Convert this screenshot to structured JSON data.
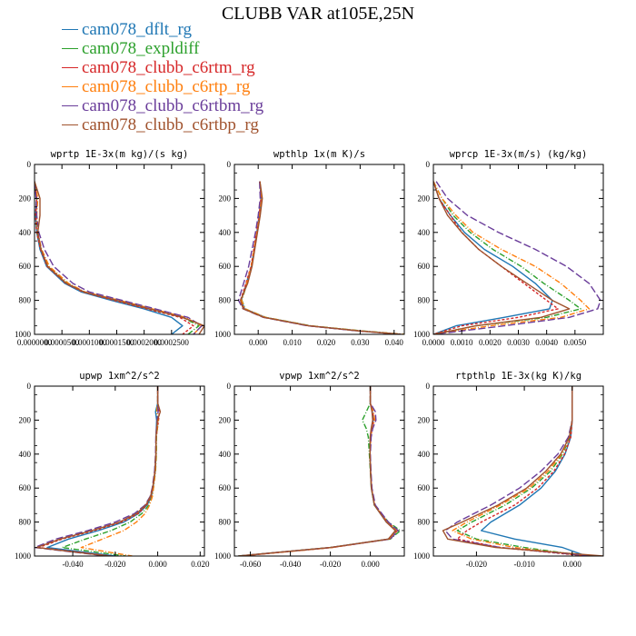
{
  "figure": {
    "title": "CLUBB VAR at105E,25N"
  },
  "legend": [
    {
      "name": "cam078_dflt_rg",
      "color": "#1f77b4"
    },
    {
      "name": "cam078_expldiff",
      "color": "#2ca02c"
    },
    {
      "name": "cam078_clubb_c6rtm_rg",
      "color": "#d62728"
    },
    {
      "name": "cam078_clubb_c6rtp_rg",
      "color": "#ff7f0e"
    },
    {
      "name": "cam078_clubb_c6rtbm_rg",
      "color": "#6a3d9a"
    },
    {
      "name": "cam078_clubb_c6rtbp_rg",
      "color": "#a0522d"
    }
  ],
  "chart_data": [
    {
      "type": "line",
      "title": "wprtp  1E-3x(m kg)/(s kg)",
      "xlim": [
        0,
        0.00031
      ],
      "ylim": [
        1000,
        0
      ],
      "xticks": [
        0,
        5e-05,
        0.0001,
        0.00015,
        0.0002,
        0.00025
      ],
      "xtick_labels": [
        "0.0000000",
        "0.0000500",
        "0.0001000",
        "0.0001500",
        "0.0002000",
        "0.0002500"
      ],
      "yticks": [
        0,
        200,
        400,
        600,
        800,
        1000
      ],
      "y": [
        100,
        200,
        300,
        400,
        500,
        600,
        700,
        750,
        800,
        850,
        900,
        950,
        1000
      ],
      "series": [
        {
          "name": "cam078_dflt_rg",
          "color": "#1f77b4",
          "dash": "",
          "x": [
            0,
            4e-06,
            2e-06,
            4e-06,
            1e-05,
            2.2e-05,
            5.5e-05,
            8.5e-05,
            0.00014,
            0.0002,
            0.00025,
            0.00027,
            0.00025
          ]
        },
        {
          "name": "cam078_expldiff",
          "color": "#2ca02c",
          "dash": "6,2,1,2",
          "x": [
            0,
            5e-06,
            3e-06,
            5e-06,
            1.2e-05,
            2.5e-05,
            6e-05,
            9e-05,
            0.00015,
            0.00021,
            0.00027,
            0.0003,
            0.00028
          ]
        },
        {
          "name": "cam078_clubb_c6rtm_rg",
          "color": "#d62728",
          "dash": "3,2",
          "x": [
            0,
            4e-06,
            2e-06,
            4e-06,
            1.1e-05,
            2.3e-05,
            5.7e-05,
            8.8e-05,
            0.000145,
            0.000205,
            0.000265,
            0.00029,
            0.00027
          ]
        },
        {
          "name": "cam078_clubb_c6rtp_rg",
          "color": "#ff7f0e",
          "dash": "6,2,1,2",
          "x": [
            0,
            6e-06,
            4e-06,
            6e-06,
            1.3e-05,
            2.7e-05,
            6.2e-05,
            9.2e-05,
            0.000155,
            0.000215,
            0.000275,
            0.000305,
            0.00029
          ]
        },
        {
          "name": "cam078_clubb_c6rtbm_rg",
          "color": "#6a3d9a",
          "dash": "8,3",
          "x": [
            0,
            3e-06,
            4e-06,
            8e-06,
            1.8e-05,
            3.5e-05,
            7e-05,
            0.0001,
            0.00016,
            0.00022,
            0.00028,
            0.000305,
            0.00029
          ]
        },
        {
          "name": "cam078_clubb_c6rtbp_rg",
          "color": "#a0522d",
          "dash": "",
          "x": [
            0,
            1e-05,
            1e-05,
            6e-06,
            1.2e-05,
            2.4e-05,
            5.8e-05,
            9e-05,
            0.00015,
            0.00021,
            0.00027,
            0.00031,
            0.0003
          ]
        }
      ]
    },
    {
      "type": "line",
      "title": "wpthlp  1x(m K)/s",
      "xlim": [
        -0.007,
        0.043
      ],
      "ylim": [
        1000,
        0
      ],
      "xticks": [
        0,
        0.01,
        0.02,
        0.03,
        0.04
      ],
      "xtick_labels": [
        "0.000",
        "0.010",
        "0.020",
        "0.030",
        "0.040"
      ],
      "yticks": [
        0,
        200,
        400,
        600,
        800,
        1000
      ],
      "y": [
        100,
        200,
        300,
        400,
        500,
        600,
        700,
        800,
        850,
        900,
        950,
        980,
        1000
      ],
      "series": [
        {
          "name": "cam078_dflt_rg",
          "color": "#1f77b4",
          "dash": "",
          "x": [
            0.0005,
            0.0008,
            0.0003,
            -0.0004,
            -0.0012,
            -0.002,
            -0.0035,
            -0.005,
            -0.004,
            0.002,
            0.015,
            0.03,
            0.042
          ]
        },
        {
          "name": "cam078_expldiff",
          "color": "#2ca02c",
          "dash": "6,2,1,2",
          "x": [
            0.0005,
            0.0009,
            0.0005,
            -0.0003,
            -0.0011,
            -0.0019,
            -0.0033,
            -0.0048,
            -0.0038,
            0.0022,
            0.0155,
            0.031,
            0.043
          ]
        },
        {
          "name": "cam078_clubb_c6rtm_rg",
          "color": "#d62728",
          "dash": "3,2",
          "x": [
            0.0005,
            0.0008,
            0.0003,
            -0.0005,
            -0.0013,
            -0.0021,
            -0.0036,
            -0.0052,
            -0.0042,
            0.0018,
            0.0148,
            0.0298,
            0.042
          ]
        },
        {
          "name": "cam078_clubb_c6rtp_rg",
          "color": "#ff7f0e",
          "dash": "6,2,1,2",
          "x": [
            0.0005,
            0.0009,
            0.0004,
            -0.0004,
            -0.0012,
            -0.002,
            -0.0034,
            -0.0049,
            -0.0039,
            0.0021,
            0.0152,
            0.0305,
            0.043
          ]
        },
        {
          "name": "cam078_clubb_c6rtbm_rg",
          "color": "#6a3d9a",
          "dash": "8,3",
          "x": [
            0.0004,
            0.0006,
            0.0,
            -0.0008,
            -0.0018,
            -0.0028,
            -0.0043,
            -0.0058,
            -0.0045,
            0.0015,
            0.0145,
            0.0295,
            0.042
          ]
        },
        {
          "name": "cam078_clubb_c6rtbp_rg",
          "color": "#a0522d",
          "dash": "",
          "x": [
            0.0005,
            0.0012,
            0.0006,
            -0.0002,
            -0.001,
            -0.0018,
            -0.0031,
            -0.0052,
            -0.0044,
            0.0017,
            0.015,
            0.03,
            0.042
          ]
        }
      ]
    },
    {
      "type": "line",
      "title": "wprcp  1E-3x(m/s) (kg/kg)",
      "xlim": [
        0,
        0.006
      ],
      "ylim": [
        1000,
        0
      ],
      "xticks": [
        0,
        0.001,
        0.002,
        0.003,
        0.004,
        0.005
      ],
      "xtick_labels": [
        "0.0000",
        "0.0010",
        "0.0020",
        "0.0030",
        "0.0040",
        "0.0050"
      ],
      "yticks": [
        0,
        200,
        400,
        600,
        800,
        1000
      ],
      "y": [
        100,
        200,
        300,
        400,
        500,
        600,
        700,
        800,
        850,
        900,
        950,
        1000
      ],
      "series": [
        {
          "name": "cam078_dflt_rg",
          "color": "#1f77b4",
          "dash": "",
          "x": [
            0,
            0.0002,
            0.0006,
            0.0011,
            0.0018,
            0.0028,
            0.0036,
            0.0042,
            0.0041,
            0.0025,
            0.0008,
            0
          ]
        },
        {
          "name": "cam078_expldiff",
          "color": "#2ca02c",
          "dash": "6,2,1,2",
          "x": [
            0,
            0.0003,
            0.0007,
            0.0013,
            0.0021,
            0.0031,
            0.0039,
            0.0048,
            0.0052,
            0.004,
            0.0015,
            0
          ]
        },
        {
          "name": "cam078_clubb_c6rtm_rg",
          "color": "#d62728",
          "dash": "3,2",
          "x": [
            0,
            0.0002,
            0.0006,
            0.001,
            0.0016,
            0.0024,
            0.0032,
            0.004,
            0.0044,
            0.003,
            0.001,
            0
          ]
        },
        {
          "name": "cam078_clubb_c6rtp_rg",
          "color": "#ff7f0e",
          "dash": "6,2,1,2",
          "x": [
            0,
            0.0003,
            0.0008,
            0.0014,
            0.0024,
            0.0036,
            0.0045,
            0.0052,
            0.0055,
            0.0045,
            0.002,
            0
          ]
        },
        {
          "name": "cam078_clubb_c6rtbm_rg",
          "color": "#6a3d9a",
          "dash": "8,3",
          "x": [
            0.0001,
            0.0005,
            0.0012,
            0.0023,
            0.0036,
            0.0047,
            0.0055,
            0.0059,
            0.0058,
            0.0048,
            0.0025,
            0
          ]
        },
        {
          "name": "cam078_clubb_c6rtbp_rg",
          "color": "#a0522d",
          "dash": "",
          "x": [
            0,
            0.0002,
            0.0005,
            0.001,
            0.0016,
            0.0024,
            0.0033,
            0.0042,
            0.0048,
            0.0038,
            0.0015,
            0
          ]
        }
      ]
    },
    {
      "type": "line",
      "title": "upwp  1xm^2/s^2",
      "xlim": [
        -0.058,
        0.022
      ],
      "ylim": [
        1000,
        0
      ],
      "xticks": [
        -0.04,
        -0.02,
        0,
        0.02
      ],
      "xtick_labels": [
        "-0.040",
        "-0.020",
        "0.000",
        "0.020"
      ],
      "yticks": [
        0,
        200,
        400,
        600,
        800,
        1000
      ],
      "y": [
        0,
        100,
        150,
        200,
        300,
        400,
        500,
        600,
        650,
        700,
        750,
        800,
        850,
        900,
        950,
        1000
      ],
      "series": [
        {
          "name": "cam078_dflt_rg",
          "color": "#1f77b4",
          "dash": "",
          "x": [
            0,
            0,
            -0.001,
            -0.0005,
            -0.0008,
            -0.0008,
            -0.0012,
            -0.0022,
            -0.003,
            -0.005,
            -0.009,
            -0.016,
            -0.028,
            -0.042,
            -0.052,
            -0.02
          ]
        },
        {
          "name": "cam078_expldiff",
          "color": "#2ca02c",
          "dash": "6,2,1,2",
          "x": [
            0,
            0,
            -0.0006,
            0.0003,
            -0.0006,
            -0.0006,
            -0.001,
            -0.002,
            -0.0026,
            -0.0042,
            -0.0075,
            -0.013,
            -0.022,
            -0.034,
            -0.045,
            -0.015
          ]
        },
        {
          "name": "cam078_clubb_c6rtm_rg",
          "color": "#d62728",
          "dash": "3,2",
          "x": [
            0,
            0,
            0.0008,
            0.0004,
            -0.0007,
            -0.0008,
            -0.0012,
            -0.0023,
            -0.0032,
            -0.0052,
            -0.0092,
            -0.017,
            -0.03,
            -0.045,
            -0.056,
            -0.022
          ]
        },
        {
          "name": "cam078_clubb_c6rtp_rg",
          "color": "#ff7f0e",
          "dash": "6,2,1,2",
          "x": [
            0,
            0,
            -0.0004,
            0.0002,
            -0.0007,
            -0.0007,
            -0.0011,
            -0.002,
            -0.0025,
            -0.0038,
            -0.006,
            -0.01,
            -0.016,
            -0.026,
            -0.036,
            -0.012
          ]
        },
        {
          "name": "cam078_clubb_c6rtbm_rg",
          "color": "#6a3d9a",
          "dash": "8,3",
          "x": [
            0,
            0,
            0.0002,
            -0.0003,
            -0.0009,
            -0.001,
            -0.0015,
            -0.0026,
            -0.0036,
            -0.006,
            -0.011,
            -0.02,
            -0.033,
            -0.048,
            -0.058,
            -0.024
          ]
        },
        {
          "name": "cam078_clubb_c6rtbp_rg",
          "color": "#a0522d",
          "dash": "",
          "x": [
            0,
            0,
            0.0012,
            -0.0001,
            -0.0008,
            -0.0009,
            -0.0013,
            -0.0024,
            -0.0034,
            -0.0056,
            -0.01,
            -0.018,
            -0.031,
            -0.046,
            -0.057,
            -0.023
          ]
        }
      ]
    },
    {
      "type": "line",
      "title": "vpwp  1xm^2/s^2",
      "xlim": [
        -0.068,
        0.017
      ],
      "ylim": [
        1000,
        0
      ],
      "xticks": [
        -0.06,
        -0.04,
        -0.02,
        0
      ],
      "xtick_labels": [
        "-0.060",
        "-0.040",
        "-0.020",
        "0.000"
      ],
      "yticks": [
        0,
        200,
        400,
        600,
        800,
        1000
      ],
      "y": [
        0,
        100,
        150,
        200,
        250,
        300,
        400,
        500,
        600,
        700,
        800,
        850,
        900,
        950,
        1000
      ],
      "series": [
        {
          "name": "cam078_dflt_rg",
          "color": "#1f77b4",
          "dash": "",
          "x": [
            0,
            0,
            0.001,
            0.0015,
            0.0005,
            0,
            -0.0002,
            0.0001,
            0.0005,
            0.002,
            0.008,
            0.013,
            0.009,
            -0.02,
            -0.066
          ]
        },
        {
          "name": "cam078_expldiff",
          "color": "#2ca02c",
          "dash": "6,2,1,2",
          "x": [
            0,
            0,
            -0.002,
            -0.004,
            -0.002,
            -0.001,
            -0.0005,
            0,
            0.0005,
            0.002,
            0.009,
            0.015,
            0.01,
            -0.02,
            -0.066
          ]
        },
        {
          "name": "cam078_clubb_c6rtm_rg",
          "color": "#d62728",
          "dash": "3,2",
          "x": [
            0,
            0,
            0.0012,
            0.0018,
            0.0008,
            0.0002,
            -0.0002,
            0.0001,
            0.0006,
            0.0022,
            0.0085,
            0.0135,
            0.0095,
            -0.019,
            -0.065
          ]
        },
        {
          "name": "cam078_clubb_c6rtp_rg",
          "color": "#ff7f0e",
          "dash": "6,2,1,2",
          "x": [
            0,
            0,
            0.0016,
            0.0022,
            0.001,
            0.0003,
            -0.0001,
            0.0002,
            0.0007,
            0.0022,
            0.0085,
            0.0135,
            0.0095,
            -0.019,
            -0.065
          ]
        },
        {
          "name": "cam078_clubb_c6rtbm_rg",
          "color": "#6a3d9a",
          "dash": "8,3",
          "x": [
            0,
            0,
            0.0025,
            0.0028,
            0.0012,
            0.0004,
            0,
            0.0003,
            0.0008,
            0.0025,
            0.009,
            0.014,
            0.01,
            -0.02,
            -0.066
          ]
        },
        {
          "name": "cam078_clubb_c6rtbp_rg",
          "color": "#a0522d",
          "dash": "",
          "x": [
            0,
            0,
            0.0008,
            0.0012,
            0.0004,
            -0.0001,
            -0.0002,
            0.0001,
            0.0005,
            0.002,
            0.008,
            0.0125,
            0.009,
            -0.02,
            -0.066
          ]
        }
      ]
    },
    {
      "type": "line",
      "title": "rtpthlp  1E-3x(kg K)/kg",
      "xlim": [
        -0.029,
        0.0065
      ],
      "ylim": [
        1000,
        0
      ],
      "xticks": [
        -0.02,
        -0.01,
        0
      ],
      "xtick_labels": [
        "-0.020",
        "-0.010",
        "0.000"
      ],
      "yticks": [
        0,
        200,
        400,
        600,
        800,
        1000
      ],
      "y": [
        0,
        100,
        200,
        300,
        400,
        500,
        600,
        700,
        800,
        850,
        900,
        950,
        1000
      ],
      "series": [
        {
          "name": "cam078_dflt_rg",
          "color": "#1f77b4",
          "dash": "",
          "x": [
            0,
            0,
            0,
            -0.0003,
            -0.0015,
            -0.0035,
            -0.0065,
            -0.011,
            -0.017,
            -0.019,
            -0.012,
            -0.002,
            0.003
          ]
        },
        {
          "name": "cam078_expldiff",
          "color": "#2ca02c",
          "dash": "6,2,1,2",
          "x": [
            0,
            0,
            0,
            -0.0005,
            -0.002,
            -0.0045,
            -0.0085,
            -0.014,
            -0.021,
            -0.024,
            -0.02,
            -0.01,
            0.003
          ]
        },
        {
          "name": "cam078_clubb_c6rtm_rg",
          "color": "#d62728",
          "dash": "3,2",
          "x": [
            0,
            0,
            0,
            -0.0003,
            -0.0016,
            -0.0038,
            -0.0072,
            -0.012,
            -0.019,
            -0.022,
            -0.024,
            -0.015,
            0.003
          ]
        },
        {
          "name": "cam078_clubb_c6rtp_rg",
          "color": "#ff7f0e",
          "dash": "6,2,1,2",
          "x": [
            0,
            0,
            0,
            -0.0006,
            -0.0022,
            -0.005,
            -0.009,
            -0.015,
            -0.022,
            -0.025,
            -0.021,
            -0.012,
            0.003
          ]
        },
        {
          "name": "cam078_clubb_c6rtbm_rg",
          "color": "#6a3d9a",
          "dash": "8,3",
          "x": [
            0,
            0,
            0,
            -0.0008,
            -0.003,
            -0.0065,
            -0.011,
            -0.017,
            -0.024,
            -0.0265,
            -0.025,
            -0.015,
            0.004
          ]
        },
        {
          "name": "cam078_clubb_c6rtbp_rg",
          "color": "#a0522d",
          "dash": "",
          "x": [
            0,
            0,
            0,
            -0.0006,
            -0.0024,
            -0.0055,
            -0.0095,
            -0.0155,
            -0.023,
            -0.027,
            -0.026,
            -0.016,
            0.0065
          ]
        }
      ]
    }
  ]
}
